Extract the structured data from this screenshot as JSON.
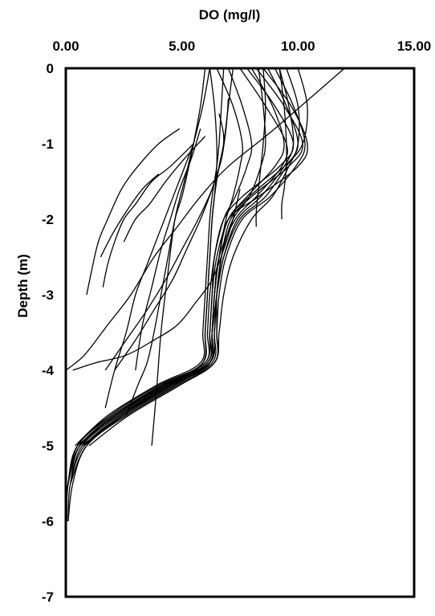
{
  "chart_data": {
    "type": "line",
    "title": "",
    "xlabel": "DO (mg/l)",
    "ylabel": "Depth (m)",
    "x_axis_position": "top",
    "xlim": [
      0,
      15
    ],
    "ylim": [
      -7,
      0
    ],
    "x_ticks": [
      0,
      5,
      10,
      15
    ],
    "x_tick_labels": [
      "0.00",
      "5.00",
      "10.00",
      "15.00"
    ],
    "y_ticks": [
      0,
      -1,
      -2,
      -3,
      -4,
      -5,
      -6,
      -7
    ],
    "y_tick_labels": [
      "0",
      "-1",
      "-2",
      "-3",
      "-4",
      "-5",
      "-6",
      "-7"
    ],
    "grid": false,
    "legend": "none",
    "line_color": "#000000",
    "series": [
      {
        "x": [
          8.2,
          9.4,
          10.2,
          9.6,
          8.0,
          7.1,
          6.7,
          6.5,
          6.5,
          6.4,
          4.6,
          2.4,
          0.8,
          0.2,
          0.1
        ],
        "y": [
          0,
          -0.5,
          -1.0,
          -1.3,
          -1.7,
          -2.0,
          -2.5,
          -3.0,
          -3.5,
          -3.9,
          -4.2,
          -4.6,
          -5.0,
          -5.5,
          -6.0
        ]
      },
      {
        "x": [
          8.5,
          9.7,
          10.4,
          10.0,
          8.3,
          7.0,
          6.6,
          6.4,
          6.3,
          6.2,
          4.4,
          2.2,
          0.6,
          0.1,
          0.05
        ],
        "y": [
          0,
          -0.5,
          -1.0,
          -1.3,
          -1.7,
          -2.0,
          -2.5,
          -3.0,
          -3.5,
          -3.9,
          -4.2,
          -4.6,
          -5.0,
          -5.5,
          -6.0
        ]
      },
      {
        "x": [
          7.8,
          9.0,
          9.8,
          9.2,
          7.6,
          6.8,
          6.4,
          6.3,
          6.2,
          6.1,
          4.2,
          2.0,
          0.5,
          0.1,
          0.0
        ],
        "y": [
          0,
          -0.5,
          -1.0,
          -1.3,
          -1.7,
          -2.0,
          -2.5,
          -3.0,
          -3.5,
          -3.9,
          -4.2,
          -4.6,
          -5.0,
          -5.5,
          -6.0
        ]
      },
      {
        "x": [
          9.0,
          9.8,
          10.3,
          9.9,
          8.8,
          7.6,
          6.9,
          6.6,
          6.5,
          6.4,
          4.8,
          2.6,
          0.9,
          0.2
        ],
        "y": [
          0,
          -0.5,
          -1.0,
          -1.3,
          -1.7,
          -2.0,
          -2.5,
          -3.0,
          -3.5,
          -3.9,
          -4.2,
          -4.6,
          -5.0,
          -5.5
        ]
      },
      {
        "x": [
          8.7,
          9.5,
          10.0,
          9.5,
          8.6,
          7.5,
          6.8,
          6.5,
          6.4,
          6.3,
          4.5,
          2.3,
          0.7,
          0.2
        ],
        "y": [
          0,
          -0.5,
          -1.0,
          -1.3,
          -1.7,
          -2.0,
          -2.5,
          -3.0,
          -3.5,
          -3.9,
          -4.2,
          -4.6,
          -5.0,
          -5.5
        ]
      },
      {
        "x": [
          7.5,
          8.6,
          9.5,
          9.3,
          8.2,
          7.3,
          6.6,
          6.4,
          6.3,
          6.2,
          4.7,
          2.5,
          0.9,
          0.3,
          0.1
        ],
        "y": [
          0,
          -0.5,
          -1.0,
          -1.3,
          -1.7,
          -2.0,
          -2.5,
          -3.0,
          -3.5,
          -3.9,
          -4.2,
          -4.6,
          -5.0,
          -5.5,
          -6.0
        ]
      },
      {
        "x": [
          9.2,
          9.6,
          9.8,
          9.4,
          8.4,
          7.4,
          6.8,
          6.5,
          6.3,
          6.1,
          4.3,
          2.1,
          0.6,
          0.1
        ],
        "y": [
          0,
          -0.5,
          -1.0,
          -1.3,
          -1.7,
          -2.0,
          -2.5,
          -3.0,
          -3.5,
          -3.9,
          -4.2,
          -4.6,
          -5.0,
          -5.5
        ]
      },
      {
        "x": [
          8.0,
          8.9,
          9.4,
          9.0,
          7.8,
          7.0,
          6.5,
          6.3,
          6.2,
          6.0,
          4.1,
          2.0,
          0.5,
          0.1
        ],
        "y": [
          0,
          -0.5,
          -1.0,
          -1.3,
          -1.7,
          -2.0,
          -2.5,
          -3.0,
          -3.5,
          -3.9,
          -4.2,
          -4.6,
          -5.0,
          -5.5
        ]
      },
      {
        "x": [
          6.5,
          7.2,
          7.6,
          7.5,
          7.2,
          6.9,
          6.6,
          6.4,
          6.3,
          6.1,
          4.4,
          2.2,
          0.6,
          0.2
        ],
        "y": [
          0,
          -0.5,
          -1.0,
          -1.3,
          -1.7,
          -2.0,
          -2.5,
          -3.0,
          -3.5,
          -3.9,
          -4.2,
          -4.6,
          -5.0,
          -5.5
        ]
      },
      {
        "x": [
          7.0,
          7.6,
          8.0,
          7.8,
          7.3,
          6.8,
          6.4,
          6.2,
          6.1,
          6.0,
          4.0,
          1.9,
          0.5,
          0.1
        ],
        "y": [
          0,
          -0.5,
          -1.0,
          -1.3,
          -1.7,
          -2.0,
          -2.5,
          -3.0,
          -3.5,
          -3.9,
          -4.2,
          -4.6,
          -5.0,
          -5.5
        ]
      },
      {
        "x": [
          7.2,
          7.0,
          6.8,
          6.6,
          6.4,
          6.3,
          6.2,
          6.1,
          6.0,
          5.9,
          4.2,
          2.1,
          0.5
        ],
        "y": [
          0,
          -0.5,
          -1.0,
          -1.3,
          -1.7,
          -2.0,
          -2.5,
          -3.0,
          -3.5,
          -3.9,
          -4.2,
          -4.6,
          -5.0
        ]
      },
      {
        "x": [
          6.8,
          6.7,
          6.6,
          6.5,
          6.3,
          6.2,
          6.1,
          6.0,
          5.9,
          5.8,
          3.9,
          1.8,
          0.4
        ],
        "y": [
          0,
          -0.5,
          -1.0,
          -1.3,
          -1.7,
          -2.0,
          -2.5,
          -3.0,
          -3.5,
          -3.9,
          -4.2,
          -4.6,
          -5.0
        ]
      },
      {
        "x": [
          6.2,
          6.4,
          6.5,
          6.5,
          6.4,
          6.3,
          6.2,
          6.1,
          6.0,
          5.9,
          4.5,
          2.4,
          0.8
        ],
        "y": [
          0,
          -0.5,
          -1.0,
          -1.3,
          -1.7,
          -2.0,
          -2.5,
          -3.0,
          -3.5,
          -3.9,
          -4.2,
          -4.6,
          -5.0
        ]
      },
      {
        "x": [
          10.0,
          10.4,
          10.2,
          9.4,
          7.9,
          7.0,
          6.6,
          6.4,
          6.3,
          6.2,
          4.6,
          2.4,
          0.7
        ],
        "y": [
          0,
          -0.5,
          -1.0,
          -1.3,
          -1.7,
          -2.0,
          -2.5,
          -3.0,
          -3.5,
          -3.9,
          -4.2,
          -4.6,
          -5.0
        ]
      },
      {
        "x": [
          9.5,
          10.0,
          10.0,
          9.6,
          8.9,
          8.0,
          7.2,
          6.8,
          6.6,
          6.4,
          4.9,
          2.7,
          1.0
        ],
        "y": [
          0,
          -0.5,
          -1.0,
          -1.3,
          -1.7,
          -2.0,
          -2.5,
          -3.0,
          -3.5,
          -3.9,
          -4.2,
          -4.6,
          -5.0
        ]
      },
      {
        "x": [
          8.3,
          8.5,
          8.6,
          8.4,
          7.9,
          7.2,
          6.7,
          6.5,
          6.4,
          6.2,
          4.3,
          2.1,
          0.6
        ],
        "y": [
          0,
          -0.5,
          -1.0,
          -1.3,
          -1.7,
          -2.0,
          -2.5,
          -3.0,
          -3.5,
          -3.9,
          -4.2,
          -4.6,
          -5.0
        ]
      },
      {
        "x": [
          6.0,
          5.8,
          5.5,
          5.3,
          5.0,
          4.7,
          4.4,
          4.1,
          3.8,
          3.5,
          3.1,
          2.6
        ],
        "y": [
          0,
          -0.5,
          -1.0,
          -1.3,
          -1.7,
          -2.0,
          -2.5,
          -3.0,
          -3.5,
          -3.9,
          -4.2,
          -4.6
        ]
      },
      {
        "x": [
          6.2,
          5.9,
          5.5,
          5.1,
          4.7,
          4.4,
          4.1,
          3.9,
          3.7
        ],
        "y": [
          0,
          -0.5,
          -1.0,
          -1.5,
          -2.0,
          -2.7,
          -3.5,
          -4.3,
          -5.0
        ]
      },
      {
        "x": [
          5.8,
          5.4,
          4.9,
          4.5,
          4.1,
          3.7,
          3.3,
          3.0
        ],
        "y": [
          -0.8,
          -1.2,
          -1.6,
          -2.0,
          -2.4,
          -2.9,
          -3.4,
          -4.0
        ]
      },
      {
        "x": [
          5.5,
          5.0,
          4.5,
          4.0,
          3.5,
          3.0,
          2.6,
          2.1,
          1.7
        ],
        "y": [
          -1.0,
          -1.4,
          -1.8,
          -2.2,
          -2.6,
          -3.0,
          -3.5,
          -4.0,
          -4.5
        ]
      },
      {
        "x": [
          6.0,
          5.1,
          4.3,
          3.6,
          3.0,
          2.5
        ],
        "y": [
          -0.9,
          -1.2,
          -1.5,
          -1.8,
          -2.0,
          -2.3
        ]
      },
      {
        "x": [
          5.5,
          4.5,
          3.7,
          3.0,
          2.5,
          2.1,
          1.8,
          1.6
        ],
        "y": [
          -1.0,
          -1.3,
          -1.5,
          -1.8,
          -2.0,
          -2.3,
          -2.6,
          -2.9
        ]
      },
      {
        "x": [
          4.9,
          4.0,
          3.1,
          2.4,
          1.8,
          1.4,
          1.1,
          0.9
        ],
        "y": [
          -0.8,
          -1.0,
          -1.3,
          -1.6,
          -2.0,
          -2.3,
          -2.7,
          -3.0
        ]
      },
      {
        "x": [
          4.0,
          3.3,
          2.6,
          2.0,
          1.5
        ],
        "y": [
          -1.4,
          -1.6,
          -1.9,
          -2.2,
          -2.5
        ]
      },
      {
        "x": [
          12.0,
          9.0,
          7.0,
          5.8,
          4.8,
          3.8,
          2.8,
          1.8,
          0.8,
          0.0
        ],
        "y": [
          0,
          -0.8,
          -1.3,
          -1.7,
          -2.1,
          -2.5,
          -3.0,
          -3.4,
          -3.8,
          -4.0
        ]
      },
      {
        "x": [
          7.5,
          7.2,
          6.8,
          6.3,
          5.6,
          4.8,
          3.8,
          2.6,
          1.3,
          0.3
        ],
        "y": [
          -1.6,
          -2.0,
          -2.4,
          -2.8,
          -3.1,
          -3.4,
          -3.6,
          -3.8,
          -3.9,
          -4.0
        ]
      },
      {
        "x": [
          8.5,
          8.6,
          8.5,
          8.4,
          8.3,
          8.2,
          8.2
        ],
        "y": [
          0,
          -0.5,
          -1.0,
          -1.3,
          -1.6,
          -1.9,
          -2.1
        ]
      },
      {
        "x": [
          9.2,
          9.4,
          9.5,
          9.5,
          9.4,
          9.3,
          9.3
        ],
        "y": [
          0,
          -0.5,
          -1.0,
          -1.3,
          -1.6,
          -1.8,
          -2.0
        ]
      },
      {
        "x": [
          6.6,
          6.8,
          6.7,
          6.3,
          5.7,
          5.0,
          4.3,
          3.5,
          2.6,
          1.7
        ],
        "y": [
          -0.6,
          -0.9,
          -1.2,
          -1.6,
          -2.0,
          -2.4,
          -2.8,
          -3.2,
          -3.6,
          -4.0
        ]
      },
      {
        "x": [
          7.0,
          6.9,
          6.7,
          6.3,
          5.8,
          5.2,
          4.6,
          3.8,
          3.0,
          2.1
        ],
        "y": [
          -0.4,
          -0.8,
          -1.2,
          -1.6,
          -2.0,
          -2.4,
          -2.8,
          -3.2,
          -3.6,
          -4.0
        ]
      }
    ]
  }
}
